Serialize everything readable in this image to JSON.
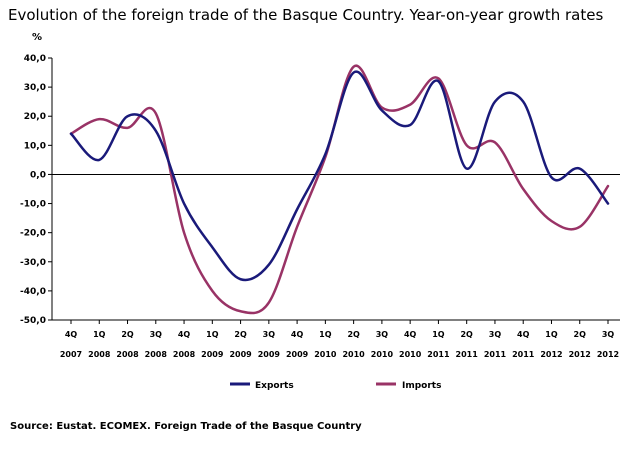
{
  "chart_data": {
    "type": "line",
    "title": "Evolution of the foreign trade of the Basque Country. Year-on-year growth rates",
    "ylabel": "%",
    "xlabel": "",
    "ylim": [
      -50,
      40
    ],
    "ytick_step": 10,
    "ytick_labels": [
      "40,0",
      "30,0",
      "20,0",
      "10,0",
      "0,0",
      "-10,0",
      "-20,0",
      "-30,0",
      "-40,0",
      "-50,0"
    ],
    "categories": [
      [
        "4Q",
        "2007"
      ],
      [
        "1Q",
        "2008"
      ],
      [
        "2Q",
        "2008"
      ],
      [
        "3Q",
        "2008"
      ],
      [
        "4Q",
        "2008"
      ],
      [
        "1Q",
        "2009"
      ],
      [
        "2Q",
        "2009"
      ],
      [
        "3Q",
        "2009"
      ],
      [
        "4Q",
        "2009"
      ],
      [
        "1Q",
        "2010"
      ],
      [
        "2Q",
        "2010"
      ],
      [
        "3Q",
        "2010"
      ],
      [
        "4Q",
        "2010"
      ],
      [
        "1Q",
        "2011"
      ],
      [
        "2Q",
        "2011"
      ],
      [
        "3Q",
        "2011"
      ],
      [
        "4Q",
        "2011"
      ],
      [
        "1Q",
        "2012"
      ],
      [
        "2Q",
        "2012"
      ],
      [
        "3Q",
        "2012"
      ]
    ],
    "series": [
      {
        "name": "Exports",
        "color": "#1a1a7a",
        "values": [
          14,
          5,
          20,
          15,
          -10,
          -25,
          -36,
          -31,
          -12,
          7,
          35,
          22,
          17,
          32,
          2,
          25,
          25,
          -1,
          2,
          -10
        ]
      },
      {
        "name": "Imports",
        "color": "#993366",
        "values": [
          14,
          19,
          16,
          21,
          -20,
          -40,
          -47,
          -44,
          -18,
          6,
          37,
          23,
          24,
          33,
          10,
          11,
          -5,
          -16,
          -18,
          -4
        ]
      }
    ],
    "legend_position": "bottom",
    "grid": false
  },
  "source": "Source: Eustat. ECOMEX. Foreign Trade of the Basque Country"
}
